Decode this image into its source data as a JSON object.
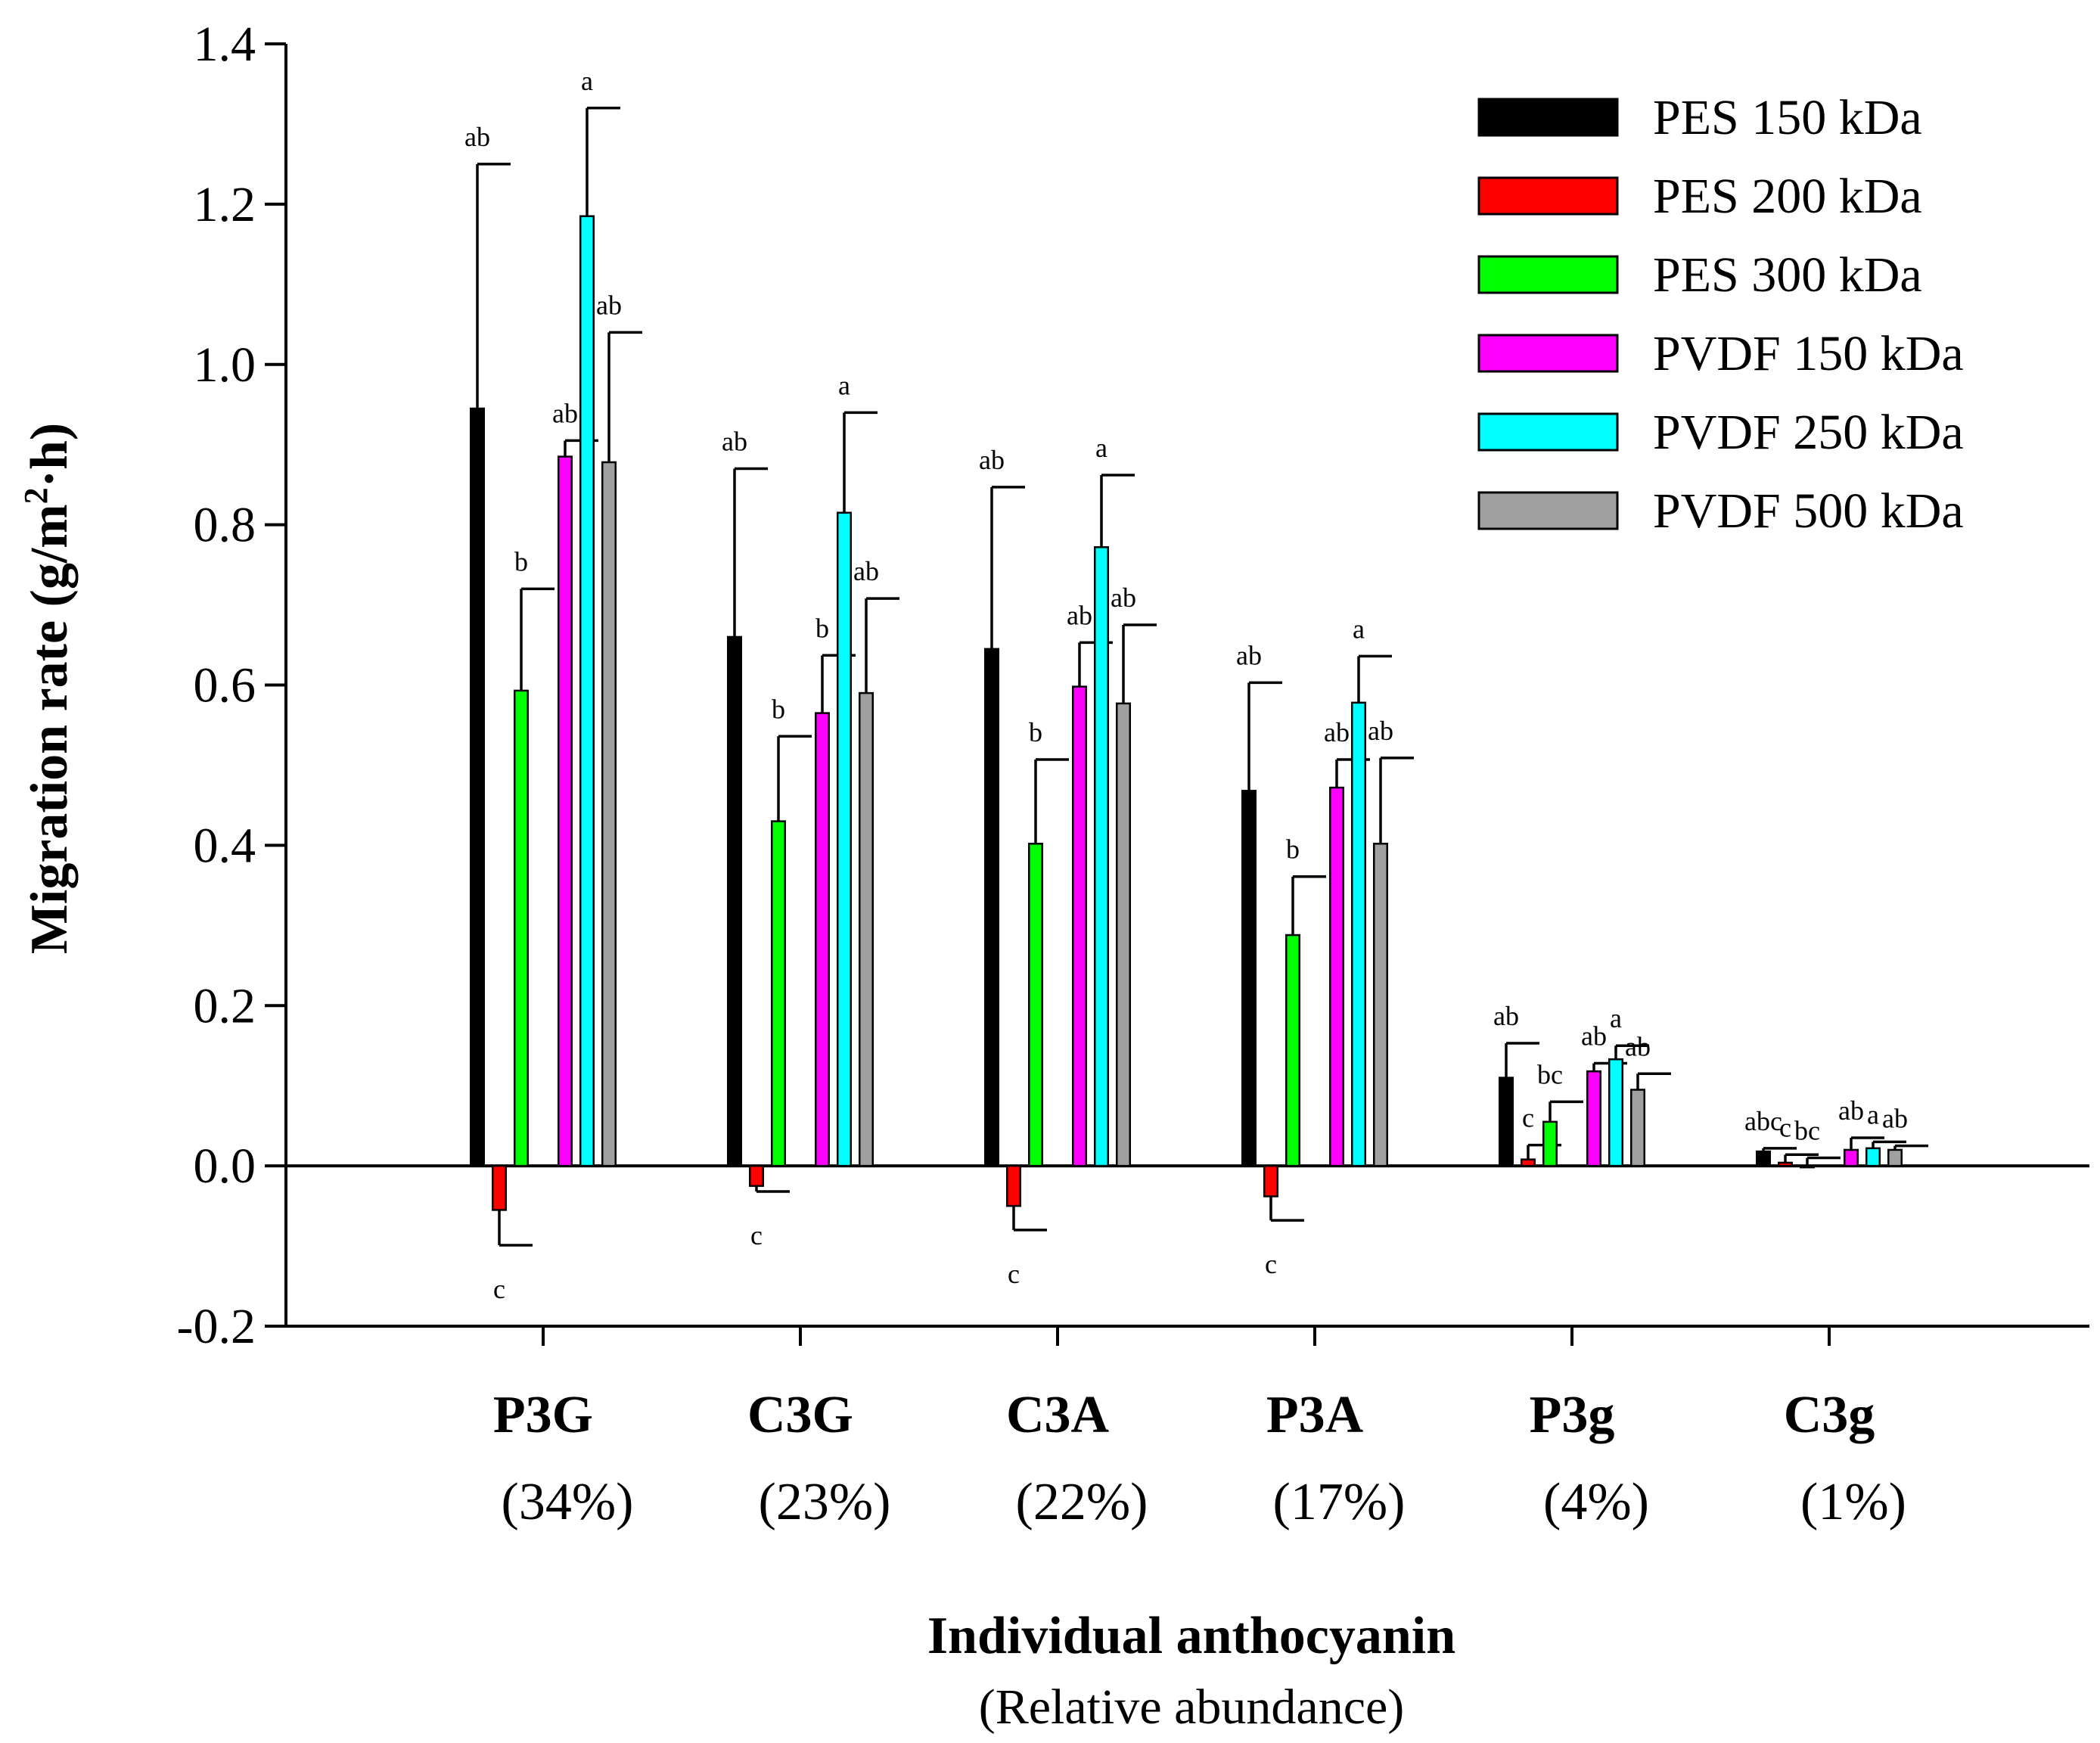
{
  "chart_data": {
    "type": "bar",
    "title": "",
    "ylabel": "Migration rate (g/m",
    "ylabel_sup": "2",
    "ylabel_end": "·h)",
    "xlabel": "Individual anthocyanin",
    "xlabel_sub": "(Relative abundance)",
    "ylim": [
      -0.2,
      1.4
    ],
    "yticks": [
      -0.2,
      0.0,
      0.2,
      0.4,
      0.6,
      0.8,
      1.0,
      1.2,
      1.4
    ],
    "ytick_labels": [
      "-0.2",
      "0.0",
      "0.2",
      "0.4",
      "0.6",
      "0.8",
      "1.0",
      "1.2",
      "1.4"
    ],
    "legend_position": "top-right",
    "categories": [
      "P3G",
      "C3G",
      "C3A",
      "P3A",
      "P3g",
      "C3g"
    ],
    "category_abundance": [
      "(34%)",
      "(23%)",
      "(22%)",
      "(17%)",
      "(4%)",
      "(1%)"
    ],
    "series": [
      {
        "name": "PES 150 kDa",
        "color": "#000000",
        "values": [
          0.945,
          0.66,
          0.645,
          0.468,
          0.11,
          0.018
        ],
        "errors": [
          0.305,
          0.21,
          0.202,
          0.135,
          0.043,
          0.004
        ],
        "letters": [
          "ab",
          "ab",
          "ab",
          "ab",
          "ab",
          "abc"
        ]
      },
      {
        "name": "PES 200 kDa",
        "color": "#ff0000",
        "values": [
          -0.055,
          -0.025,
          -0.05,
          -0.038,
          0.008,
          0.004
        ],
        "errors": [
          0.044,
          0.007,
          0.03,
          0.03,
          0.018,
          0.01
        ],
        "letters": [
          "c",
          "c",
          "c",
          "c",
          "c",
          "c"
        ]
      },
      {
        "name": "PES 300 kDa",
        "color": "#00ff00",
        "values": [
          0.593,
          0.43,
          0.402,
          0.288,
          0.055,
          0.0
        ],
        "errors": [
          0.127,
          0.106,
          0.105,
          0.073,
          0.025,
          0.01
        ],
        "letters": [
          "b",
          "b",
          "b",
          "b",
          "bc",
          "bc"
        ]
      },
      {
        "name": "PVDF 150 kDa",
        "color": "#ff00ff",
        "values": [
          0.885,
          0.565,
          0.598,
          0.472,
          0.118,
          0.02
        ],
        "errors": [
          0.02,
          0.072,
          0.055,
          0.035,
          0.01,
          0.015
        ],
        "letters": [
          "ab",
          "b",
          "ab",
          "ab",
          "ab",
          "ab"
        ]
      },
      {
        "name": "PVDF 250 kDa",
        "color": "#00ffff",
        "values": [
          1.185,
          0.815,
          0.772,
          0.578,
          0.133,
          0.022
        ],
        "errors": [
          0.135,
          0.125,
          0.09,
          0.058,
          0.017,
          0.008
        ],
        "letters": [
          "a",
          "a",
          "a",
          "a",
          "a",
          "a"
        ]
      },
      {
        "name": "PVDF 500 kDa",
        "color": "#a0a0a0",
        "values": [
          0.878,
          0.59,
          0.577,
          0.402,
          0.095,
          0.02
        ],
        "errors": [
          0.162,
          0.118,
          0.098,
          0.107,
          0.02,
          0.005
        ],
        "letters": [
          "ab",
          "ab",
          "ab",
          "ab",
          "ab",
          "ab"
        ]
      }
    ]
  }
}
